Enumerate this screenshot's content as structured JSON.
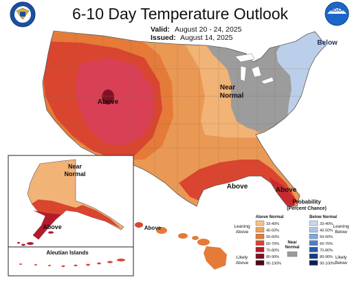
{
  "header": {
    "title": "6-10 Day Temperature Outlook",
    "valid_label": "Valid:",
    "valid_dates": "August 20 - 24, 2025",
    "issued_label": "Issued:",
    "issued_date": "August 14, 2025",
    "noaa_logo_text": "NOAA",
    "commerce_seal": "Department of Commerce seal"
  },
  "map_labels": {
    "west": "Above",
    "northeast": "Below",
    "midwest_line1": "Near",
    "midwest_line2": "Normal",
    "gulf": "Above",
    "florida": "Above",
    "alaska_north_line1": "Near",
    "alaska_north_line2": "Normal",
    "alaska_south": "Above",
    "aleutian": "Aleutian Islands",
    "hawaii": "Above"
  },
  "legend": {
    "title": "Probability",
    "subtitle": "(Percent Chance)",
    "above_header": "Above Normal",
    "below_header": "Below Normal",
    "near_label_line1": "Near",
    "near_label_line2": "Normal",
    "leaning_above_line1": "Leaning",
    "leaning_above_line2": "Above",
    "likely_above_line1": "Likely",
    "likely_above_line2": "Above",
    "leaning_below_line1": "Leaning",
    "leaning_below_line2": "Below",
    "likely_below_line1": "Likely",
    "likely_below_line2": "Below",
    "ranges": [
      "33-40%",
      "40-50%",
      "50-60%",
      "60-70%",
      "70-80%",
      "80-90%",
      "90-100%"
    ],
    "above_colors": [
      "#f6c184",
      "#f0a058",
      "#e57a39",
      "#d9452f",
      "#b41a2a",
      "#7e1224",
      "#4b0b1a"
    ],
    "below_colors": [
      "#c6d8ef",
      "#a8c5e8",
      "#7ea7dc",
      "#4f7fc6",
      "#2a5aa8",
      "#173b83",
      "#0b2157"
    ],
    "near_color": "#9b9b9b"
  }
}
